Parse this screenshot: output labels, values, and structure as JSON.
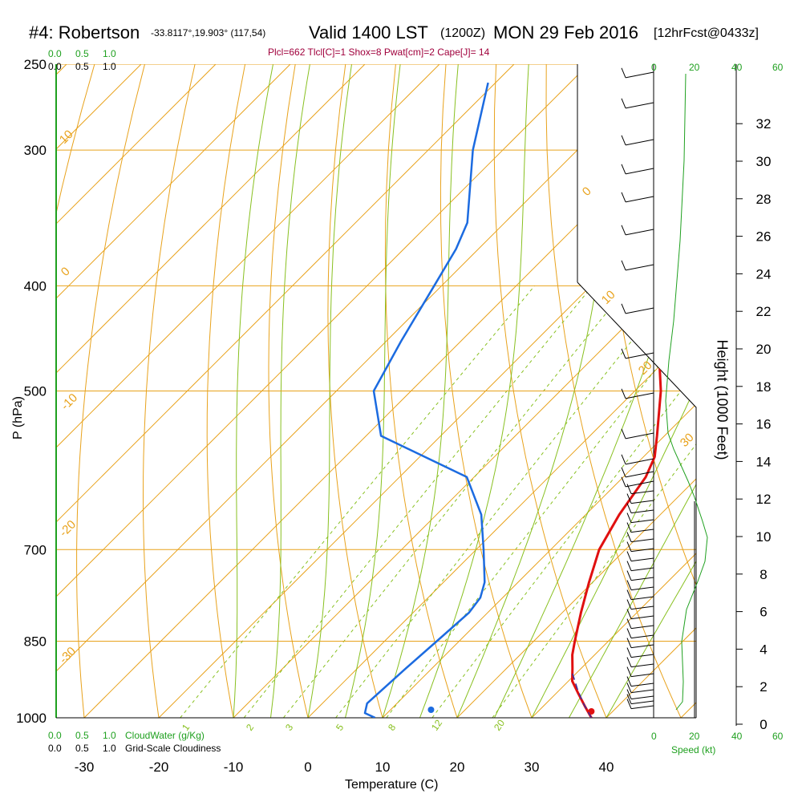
{
  "header": {
    "station": "#4: Robertson",
    "coords": "-33.8117°,19.903° (117,54)",
    "valid": "Valid 1400 LST",
    "utc": "(1200Z)",
    "date": "MON 29 Feb 2016",
    "forecast": "[12hrFcst@0433z]",
    "stats": "Plcl=662 Tlcl[C]=1 Shox=8 Pwat[cm]=2 Cape[J]= 14"
  },
  "cloud_scale_top": {
    "green": [
      "0.0",
      "0.5",
      "1.0"
    ],
    "black": [
      "0.0",
      "0.5",
      "1.0"
    ]
  },
  "cloud_scale_bottom": {
    "green": [
      "0.0",
      "0.5",
      "1.0"
    ],
    "black": [
      "0.0",
      "0.5",
      "1.0"
    ],
    "green_label": "CloudWater (g/Kg)",
    "black_label": "Grid-Scale Cloudiness"
  },
  "wind_speed_axis": {
    "ticks": [
      "0",
      "20",
      "40",
      "60"
    ],
    "label": "Speed (kt)"
  },
  "colors": {
    "temperature": "#e01010",
    "dewpoint": "#1c6be0",
    "isotherm": "#e8a21c",
    "dry_adiabat": "#e8a21c",
    "moist_adiabat": "#88c020",
    "mixing_ratio": "#88c020",
    "wind_speed": "#1fa01f"
  },
  "chart_data": {
    "type": "skew-t",
    "xlabel": "Temperature (C)",
    "ylabel": "P (hPa)",
    "y2label": "Height (1000 Feet)",
    "pressure_ticks": [
      "250",
      "300",
      "400",
      "500",
      "700",
      "850",
      "1000"
    ],
    "temperature_ticks": [
      "-30",
      "-20",
      "-10",
      "0",
      "10",
      "20",
      "30",
      "40"
    ],
    "height_ticks": [
      "0",
      "2",
      "4",
      "6",
      "8",
      "10",
      "12",
      "14",
      "16",
      "18",
      "20",
      "22",
      "24",
      "26",
      "28",
      "30",
      "32"
    ],
    "isotherm_labels": [
      "10",
      "0",
      "-10",
      "-20",
      "-30",
      "0",
      "10",
      "20",
      "30"
    ],
    "mixing_ratio_labels": [
      "1",
      "2",
      "3",
      "5",
      "8",
      "12",
      "20"
    ],
    "temperature_profile": {
      "pressure_hPa": [
        1000,
        975,
        950,
        925,
        900,
        875,
        850,
        800,
        750,
        700,
        650,
        600,
        575,
        550,
        500,
        450,
        400,
        350,
        300,
        260
      ],
      "temp_C": [
        38,
        35.5,
        33,
        30.5,
        28.8,
        27,
        25.5,
        22.5,
        19.5,
        16.5,
        14.5,
        13,
        11.5,
        9,
        3.5,
        -3.5,
        -10,
        -19,
        -31,
        -41
      ]
    },
    "dewpoint_profile": {
      "pressure_hPa": [
        1000,
        990,
        970,
        900,
        850,
        800,
        775,
        750,
        700,
        650,
        600,
        550,
        500,
        450,
        400,
        370,
        350,
        300,
        260
      ],
      "dewpoint_C": [
        9,
        7,
        6,
        6.5,
        7,
        7.5,
        7,
        5.5,
        1,
        -4,
        -11,
        -28,
        -35,
        -38,
        -41,
        -43,
        -45,
        -54,
        -61
      ]
    },
    "surface_dewpoint_marker_C": 16.5
  }
}
